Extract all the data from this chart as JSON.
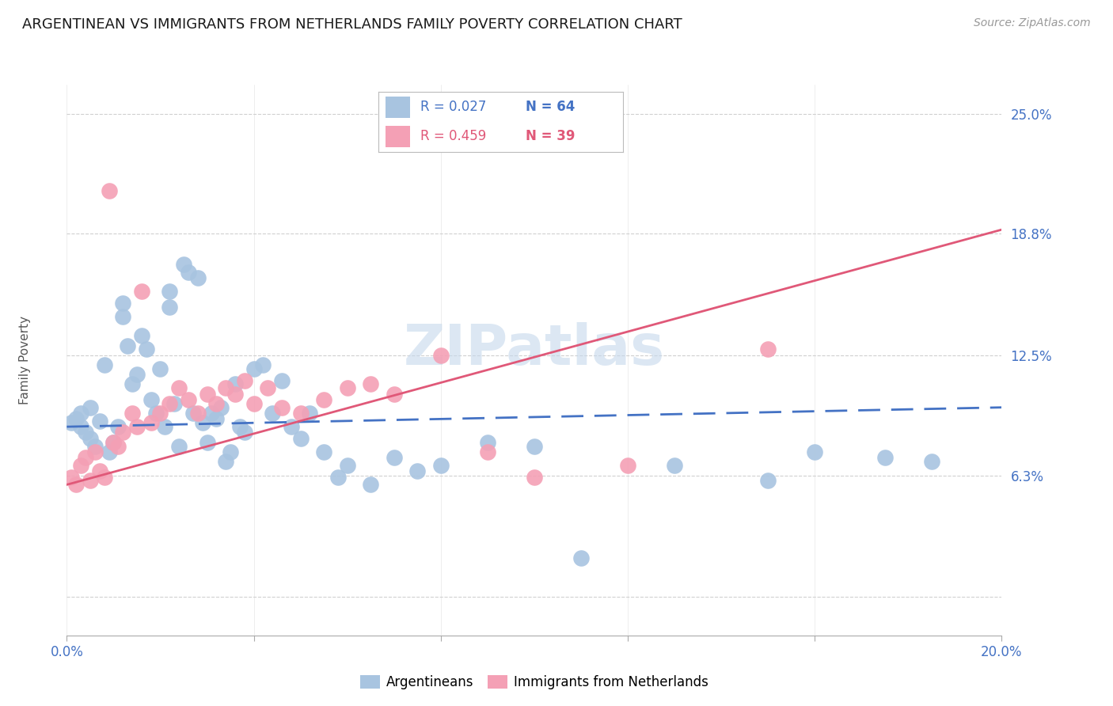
{
  "title": "ARGENTINEAN VS IMMIGRANTS FROM NETHERLANDS FAMILY POVERTY CORRELATION CHART",
  "source": "Source: ZipAtlas.com",
  "ylabel": "Family Poverty",
  "x_min": 0.0,
  "x_max": 0.2,
  "y_min": -0.02,
  "y_max": 0.265,
  "x_ticks": [
    0.0,
    0.04,
    0.08,
    0.12,
    0.16,
    0.2
  ],
  "x_tick_labels": [
    "0.0%",
    "",
    "",
    "",
    "",
    "20.0%"
  ],
  "y_ticks": [
    0.0,
    0.0625,
    0.125,
    0.188,
    0.25
  ],
  "y_tick_labels": [
    "",
    "6.3%",
    "12.5%",
    "18.8%",
    "25.0%"
  ],
  "grid_color": "#d0d0d0",
  "background_color": "#ffffff",
  "watermark": "ZIPatlas",
  "legend_r1": "R = 0.027",
  "legend_n1": "N = 64",
  "legend_r2": "R = 0.459",
  "legend_n2": "N = 39",
  "legend_label1": "Argentineans",
  "legend_label2": "Immigrants from Netherlands",
  "scatter_color1": "#a8c4e0",
  "scatter_color2": "#f4a0b5",
  "line_color1": "#4472c4",
  "line_color2": "#e05878",
  "tick_color": "#4472c4",
  "title_fontsize": 13,
  "source_fontsize": 10,
  "axis_label_fontsize": 11,
  "tick_fontsize": 12,
  "watermark_fontsize": 52,
  "watermark_color": "#c5d8ec",
  "arg_line_x0": 0.0,
  "arg_line_x1": 0.2,
  "arg_line_y0": 0.088,
  "arg_line_y1": 0.098,
  "net_line_x0": 0.0,
  "net_line_x1": 0.2,
  "net_line_y0": 0.058,
  "net_line_y1": 0.19,
  "argentineans_x": [
    0.001,
    0.002,
    0.003,
    0.003,
    0.004,
    0.005,
    0.005,
    0.006,
    0.007,
    0.008,
    0.009,
    0.01,
    0.011,
    0.012,
    0.012,
    0.013,
    0.014,
    0.015,
    0.016,
    0.017,
    0.018,
    0.019,
    0.02,
    0.021,
    0.022,
    0.022,
    0.023,
    0.024,
    0.025,
    0.026,
    0.027,
    0.028,
    0.029,
    0.03,
    0.031,
    0.032,
    0.033,
    0.034,
    0.035,
    0.036,
    0.037,
    0.038,
    0.04,
    0.042,
    0.044,
    0.046,
    0.048,
    0.05,
    0.052,
    0.055,
    0.058,
    0.06,
    0.065,
    0.07,
    0.075,
    0.08,
    0.09,
    0.1,
    0.11,
    0.13,
    0.15,
    0.16,
    0.175,
    0.185
  ],
  "argentineans_y": [
    0.09,
    0.092,
    0.088,
    0.095,
    0.085,
    0.082,
    0.098,
    0.078,
    0.091,
    0.12,
    0.075,
    0.08,
    0.088,
    0.145,
    0.152,
    0.13,
    0.11,
    0.115,
    0.135,
    0.128,
    0.102,
    0.095,
    0.118,
    0.088,
    0.15,
    0.158,
    0.1,
    0.078,
    0.172,
    0.168,
    0.095,
    0.165,
    0.09,
    0.08,
    0.095,
    0.092,
    0.098,
    0.07,
    0.075,
    0.11,
    0.088,
    0.085,
    0.118,
    0.12,
    0.095,
    0.112,
    0.088,
    0.082,
    0.095,
    0.075,
    0.062,
    0.068,
    0.058,
    0.072,
    0.065,
    0.068,
    0.08,
    0.078,
    0.02,
    0.068,
    0.06,
    0.075,
    0.072,
    0.07
  ],
  "netherlands_x": [
    0.001,
    0.002,
    0.003,
    0.004,
    0.005,
    0.006,
    0.007,
    0.008,
    0.009,
    0.01,
    0.011,
    0.012,
    0.014,
    0.015,
    0.016,
    0.018,
    0.02,
    0.022,
    0.024,
    0.026,
    0.028,
    0.03,
    0.032,
    0.034,
    0.036,
    0.038,
    0.04,
    0.043,
    0.046,
    0.05,
    0.055,
    0.06,
    0.065,
    0.07,
    0.08,
    0.09,
    0.1,
    0.12,
    0.15
  ],
  "netherlands_y": [
    0.062,
    0.058,
    0.068,
    0.072,
    0.06,
    0.075,
    0.065,
    0.062,
    0.21,
    0.08,
    0.078,
    0.085,
    0.095,
    0.088,
    0.158,
    0.09,
    0.095,
    0.1,
    0.108,
    0.102,
    0.095,
    0.105,
    0.1,
    0.108,
    0.105,
    0.112,
    0.1,
    0.108,
    0.098,
    0.095,
    0.102,
    0.108,
    0.11,
    0.105,
    0.125,
    0.075,
    0.062,
    0.068,
    0.128
  ]
}
